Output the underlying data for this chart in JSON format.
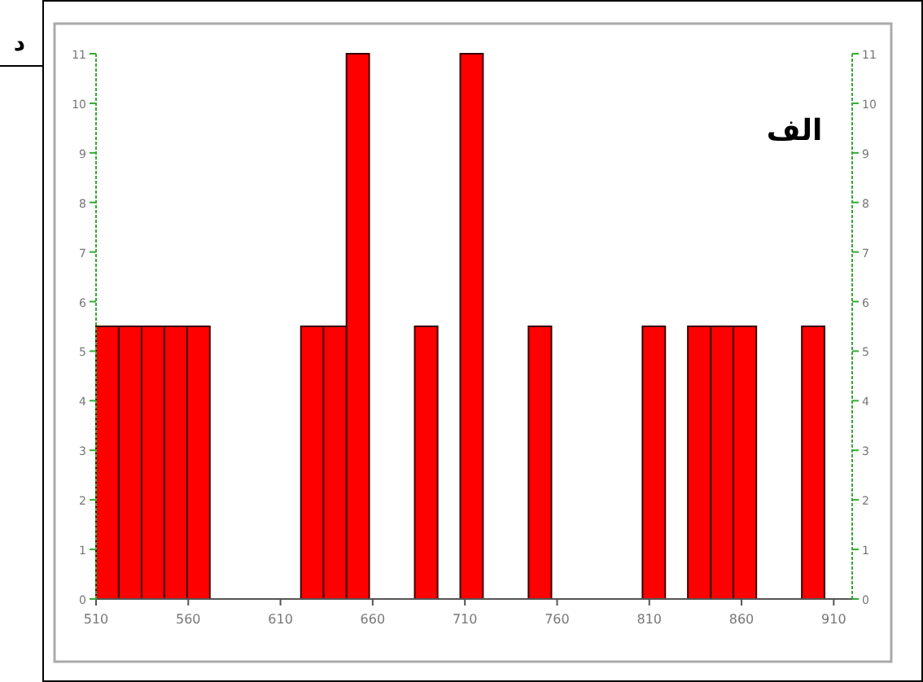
{
  "chart_data": {
    "type": "histogram",
    "bins": [
      510,
      522.3,
      534.7,
      547.0,
      559.4,
      571.7,
      584.1,
      596.4,
      608.8,
      621.1,
      633.4,
      645.8,
      658.1,
      670.5,
      682.8,
      695.2,
      707.5,
      719.8,
      732.2,
      744.5,
      756.9,
      769.2,
      781.6,
      793.9,
      806.3,
      818.6,
      830.9,
      843.3,
      855.6,
      868.0,
      880.3,
      892.7,
      905.0
    ],
    "values": [
      5.5,
      5.5,
      5.5,
      5.5,
      5.5,
      0,
      0,
      0,
      0,
      5.5,
      5.5,
      11,
      0,
      0,
      5.5,
      0,
      11,
      0,
      0,
      5.5,
      0,
      0,
      0,
      0,
      5.5,
      0,
      5.5,
      5.5,
      5.5,
      0,
      0,
      5.5
    ],
    "color": "#ff0000",
    "xlim": [
      510,
      920
    ],
    "xticks": [
      510,
      560,
      610,
      660,
      710,
      760,
      810,
      860,
      910
    ],
    "ylim": [
      0,
      11
    ],
    "yticks": [
      0,
      1,
      2,
      3,
      4,
      5,
      6,
      7,
      8,
      9,
      10,
      11
    ],
    "y2lim": [
      0,
      11
    ],
    "y2ticks": [
      0,
      1,
      2,
      3,
      4,
      5,
      6,
      7,
      8,
      9,
      10,
      11
    ],
    "grid": false,
    "annotations": [
      "د",
      "الف"
    ]
  }
}
